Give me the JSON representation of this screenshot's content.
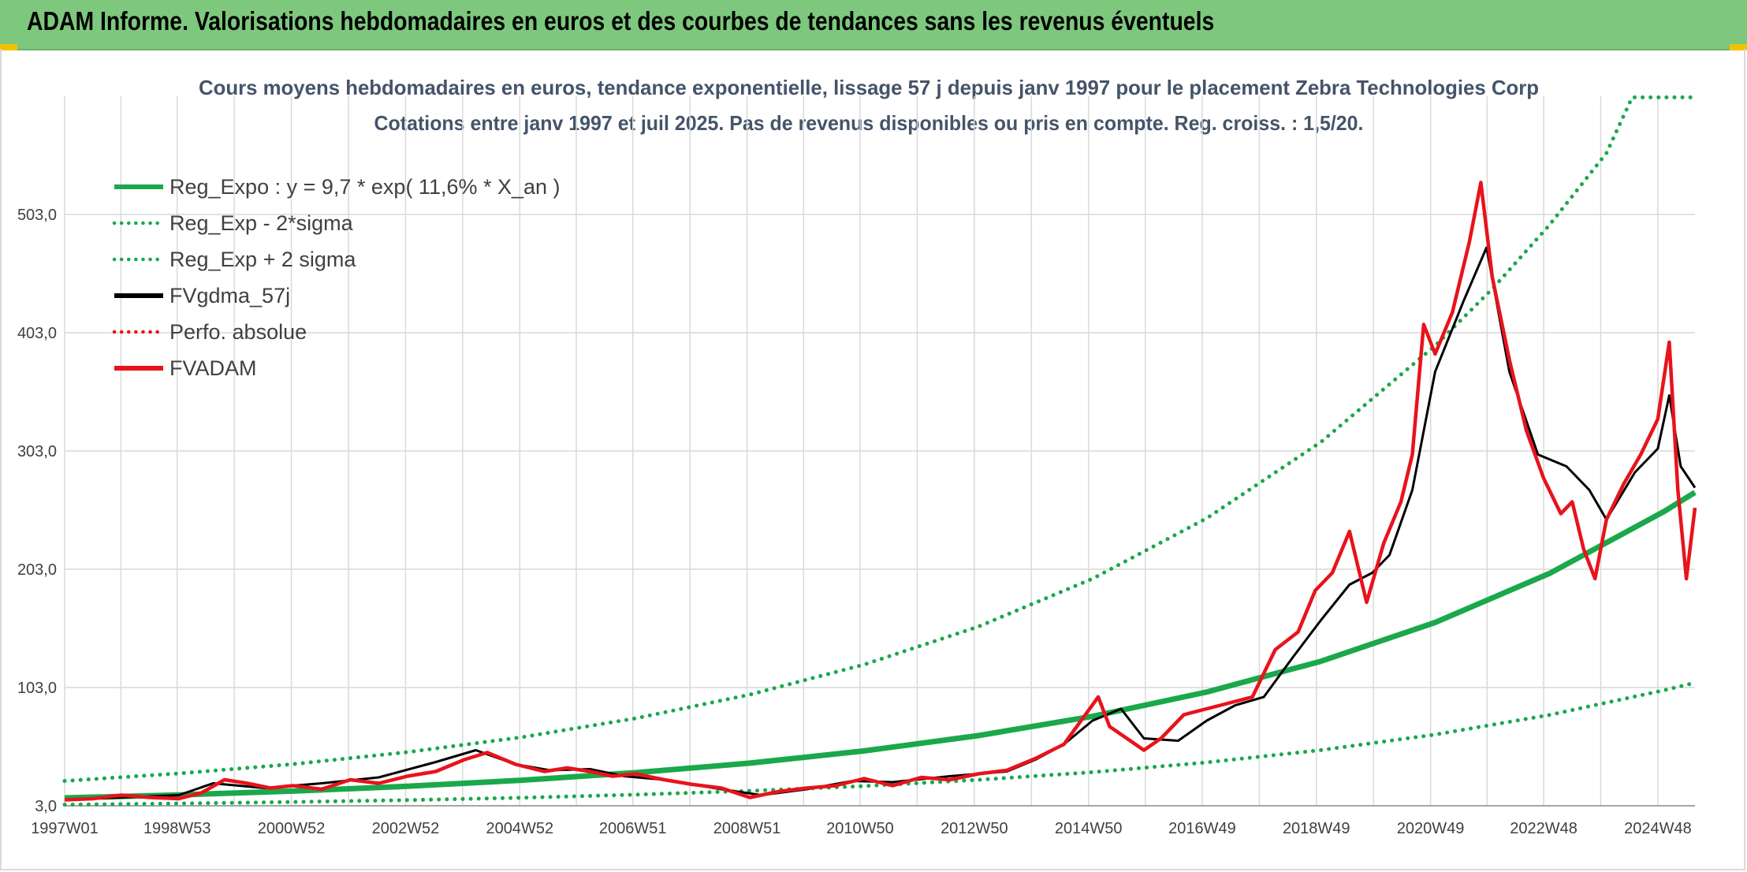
{
  "header": {
    "title": "ADAM Informe. Valorisations hebdomadaires en euros et des courbes de tendances sans les revenus éventuels"
  },
  "colors": {
    "header_bg": "#7dc87d",
    "trend_green": "#1aa84b",
    "dotted_green": "#1aa84b",
    "smooth_black": "#000000",
    "price_red": "#e8131b",
    "grid": "#d9d9d9",
    "title_text": "#44546a"
  },
  "chart_data": {
    "type": "line",
    "title": "Cours moyens hebdomadaires en euros, tendance exponentielle, lissage 57 j depuis janv 1997 pour le placement Zebra Technologies Corp",
    "subtitle": "Cotations entre janv 1997 et juil 2025. Pas de revenus disponibles ou pris en compte. Reg. croiss. : 1,5/20.",
    "xlabel": "",
    "ylabel": "",
    "x_range": [
      1997.0,
      2025.55
    ],
    "ylim": [
      3,
      603
    ],
    "y_ticks": [
      "3,0",
      "103,0",
      "203,0",
      "303,0",
      "403,0",
      "503,0"
    ],
    "y_tick_values": [
      3,
      103,
      203,
      303,
      403,
      503
    ],
    "x_ticks": [
      "1997W01",
      "1998W53",
      "2000W52",
      "2002W52",
      "2004W52",
      "2006W51",
      "2008W51",
      "2010W50",
      "2012W50",
      "2014W50",
      "2016W49",
      "2018W49",
      "2020W49",
      "2022W48",
      "2024W48"
    ],
    "x_tick_values": [
      1997.0,
      1998.97,
      2000.97,
      2002.97,
      2004.97,
      2006.95,
      2008.95,
      2010.93,
      2012.93,
      2014.93,
      2016.92,
      2018.92,
      2020.92,
      2022.9,
      2024.9
    ],
    "legend_position": "top-left",
    "grid": true,
    "series": [
      {
        "name": "Reg_Expo : y = 9,7 * exp( 11,6% *  X_an )",
        "style": "solid-thick",
        "color": "#1aa84b",
        "points": [
          [
            1997.0,
            9.7
          ],
          [
            1999.0,
            12.2
          ],
          [
            2001.0,
            15.4
          ],
          [
            2003.0,
            19.5
          ],
          [
            2005.0,
            24.6
          ],
          [
            2007.0,
            31.0
          ],
          [
            2009.0,
            39.1
          ],
          [
            2011.0,
            49.4
          ],
          [
            2013.0,
            62.3
          ],
          [
            2015.0,
            78.6
          ],
          [
            2017.0,
            99.2
          ],
          [
            2019.0,
            125.2
          ],
          [
            2021.0,
            158.0
          ],
          [
            2023.0,
            199.4
          ],
          [
            2025.0,
            251.6
          ],
          [
            2025.55,
            268.0
          ]
        ]
      },
      {
        "name": "Reg_Exp - 2*sigma",
        "style": "dotted",
        "color": "#1aa84b",
        "points": [
          [
            1997.0,
            3.9
          ],
          [
            1999.0,
            4.9
          ],
          [
            2001.0,
            6.2
          ],
          [
            2003.0,
            7.8
          ],
          [
            2005.0,
            9.8
          ],
          [
            2007.0,
            12.4
          ],
          [
            2009.0,
            15.6
          ],
          [
            2011.0,
            19.7
          ],
          [
            2013.0,
            24.9
          ],
          [
            2015.0,
            31.4
          ],
          [
            2017.0,
            39.7
          ],
          [
            2019.0,
            50.1
          ],
          [
            2021.0,
            63.2
          ],
          [
            2023.0,
            79.8
          ],
          [
            2025.0,
            100.6
          ],
          [
            2025.55,
            107.0
          ]
        ]
      },
      {
        "name": "Reg_Exp + 2 sigma",
        "style": "dotted",
        "color": "#1aa84b",
        "points": [
          [
            1997.0,
            24.0
          ],
          [
            1999.0,
            30.3
          ],
          [
            2001.0,
            38.2
          ],
          [
            2003.0,
            48.3
          ],
          [
            2005.0,
            60.9
          ],
          [
            2007.0,
            76.9
          ],
          [
            2009.0,
            97.0
          ],
          [
            2011.0,
            122.4
          ],
          [
            2013.0,
            154.5
          ],
          [
            2015.0,
            195.0
          ],
          [
            2017.0,
            246.1
          ],
          [
            2019.0,
            310.6
          ],
          [
            2021.0,
            392.0
          ],
          [
            2022.0,
            440.0
          ],
          [
            2023.0,
            494.0
          ],
          [
            2024.0,
            554.9
          ],
          [
            2024.45,
            602.0
          ],
          [
            2025.55,
            602.0
          ]
        ]
      },
      {
        "name": "FVgdma_57j",
        "style": "solid-thin",
        "color": "#000000",
        "points": [
          [
            1997.0,
            8
          ],
          [
            1998.0,
            10
          ],
          [
            1999.0,
            12
          ],
          [
            1999.6,
            22
          ],
          [
            2000.5,
            18
          ],
          [
            2001.5,
            22
          ],
          [
            2002.5,
            27
          ],
          [
            2003.5,
            40
          ],
          [
            2004.2,
            50
          ],
          [
            2004.9,
            38
          ],
          [
            2005.5,
            33
          ],
          [
            2006.2,
            34
          ],
          [
            2006.8,
            28
          ],
          [
            2007.5,
            25
          ],
          [
            2008.5,
            17
          ],
          [
            2009.2,
            12
          ],
          [
            2010.0,
            17
          ],
          [
            2010.8,
            24
          ],
          [
            2011.5,
            23
          ],
          [
            2012.5,
            28
          ],
          [
            2013.5,
            32
          ],
          [
            2014.0,
            42
          ],
          [
            2014.5,
            55
          ],
          [
            2015.0,
            75
          ],
          [
            2015.5,
            85
          ],
          [
            2015.9,
            60
          ],
          [
            2016.5,
            58
          ],
          [
            2017.0,
            75
          ],
          [
            2017.5,
            88
          ],
          [
            2018.0,
            95
          ],
          [
            2018.5,
            128
          ],
          [
            2019.0,
            160
          ],
          [
            2019.5,
            190
          ],
          [
            2019.9,
            200
          ],
          [
            2020.2,
            215
          ],
          [
            2020.6,
            270
          ],
          [
            2021.0,
            370
          ],
          [
            2021.5,
            430
          ],
          [
            2021.9,
            475
          ],
          [
            2022.3,
            370
          ],
          [
            2022.8,
            300
          ],
          [
            2023.3,
            290
          ],
          [
            2023.7,
            270
          ],
          [
            2024.0,
            245
          ],
          [
            2024.5,
            285
          ],
          [
            2024.9,
            305
          ],
          [
            2025.1,
            350
          ],
          [
            2025.3,
            290
          ],
          [
            2025.55,
            272
          ]
        ]
      },
      {
        "name": "Perfo. absolue",
        "style": "dotted",
        "color": "#e8131b",
        "points": []
      },
      {
        "name": "FVADAM",
        "style": "solid-thick",
        "color": "#e8131b",
        "points": [
          [
            1997.0,
            8
          ],
          [
            1997.5,
            9
          ],
          [
            1998.0,
            12
          ],
          [
            1998.5,
            10
          ],
          [
            1999.0,
            9
          ],
          [
            1999.4,
            14
          ],
          [
            1999.8,
            25
          ],
          [
            2000.2,
            22
          ],
          [
            2000.6,
            18
          ],
          [
            2001.0,
            20
          ],
          [
            2001.5,
            17
          ],
          [
            2002.0,
            25
          ],
          [
            2002.5,
            22
          ],
          [
            2003.0,
            28
          ],
          [
            2003.5,
            32
          ],
          [
            2004.0,
            42
          ],
          [
            2004.4,
            48
          ],
          [
            2004.9,
            38
          ],
          [
            2005.4,
            32
          ],
          [
            2005.8,
            35
          ],
          [
            2006.2,
            32
          ],
          [
            2006.6,
            28
          ],
          [
            2007.0,
            30
          ],
          [
            2007.5,
            25
          ],
          [
            2008.0,
            21
          ],
          [
            2008.5,
            18
          ],
          [
            2009.0,
            10
          ],
          [
            2009.5,
            15
          ],
          [
            2010.0,
            18
          ],
          [
            2010.5,
            20
          ],
          [
            2011.0,
            26
          ],
          [
            2011.5,
            20
          ],
          [
            2012.0,
            27
          ],
          [
            2012.5,
            25
          ],
          [
            2013.0,
            30
          ],
          [
            2013.5,
            33
          ],
          [
            2014.0,
            43
          ],
          [
            2014.5,
            55
          ],
          [
            2014.8,
            75
          ],
          [
            2015.1,
            95
          ],
          [
            2015.3,
            70
          ],
          [
            2015.6,
            60
          ],
          [
            2015.9,
            50
          ],
          [
            2016.2,
            60
          ],
          [
            2016.6,
            80
          ],
          [
            2017.0,
            85
          ],
          [
            2017.4,
            90
          ],
          [
            2017.8,
            95
          ],
          [
            2018.2,
            135
          ],
          [
            2018.6,
            150
          ],
          [
            2018.9,
            185
          ],
          [
            2019.2,
            200
          ],
          [
            2019.5,
            235
          ],
          [
            2019.8,
            175
          ],
          [
            2020.1,
            225
          ],
          [
            2020.4,
            260
          ],
          [
            2020.6,
            300
          ],
          [
            2020.8,
            410
          ],
          [
            2021.0,
            385
          ],
          [
            2021.3,
            420
          ],
          [
            2021.6,
            480
          ],
          [
            2021.8,
            530
          ],
          [
            2022.0,
            450
          ],
          [
            2022.3,
            380
          ],
          [
            2022.6,
            320
          ],
          [
            2022.9,
            280
          ],
          [
            2023.2,
            250
          ],
          [
            2023.4,
            260
          ],
          [
            2023.6,
            220
          ],
          [
            2023.8,
            195
          ],
          [
            2024.0,
            245
          ],
          [
            2024.3,
            275
          ],
          [
            2024.6,
            300
          ],
          [
            2024.9,
            330
          ],
          [
            2025.1,
            395
          ],
          [
            2025.25,
            270
          ],
          [
            2025.4,
            195
          ],
          [
            2025.55,
            255
          ]
        ]
      }
    ]
  }
}
